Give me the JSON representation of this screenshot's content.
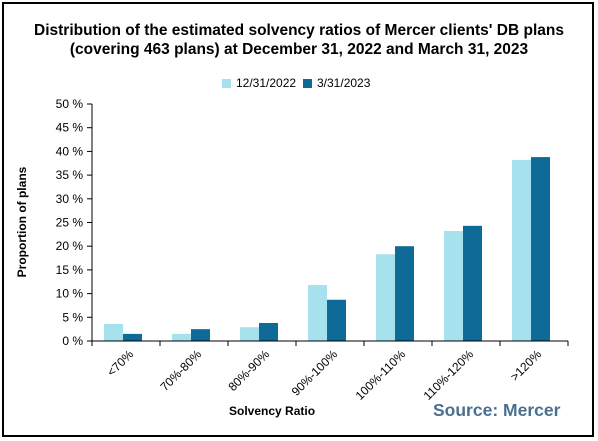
{
  "chart_data": {
    "type": "bar",
    "title": "Distribution  of the estimated  solvency ratios of Mercer clients' DB plans",
    "subtitle": "(covering 463 plans) at December 31, 2022 and March 31, 2023",
    "xlabel": "Solvency Ratio",
    "ylabel": "Proportion of plans",
    "ylim": [
      0,
      50
    ],
    "yticks": [
      0,
      5,
      10,
      15,
      20,
      25,
      30,
      35,
      40,
      45,
      50
    ],
    "ytick_labels": [
      "0 %",
      "5 %",
      "10 %",
      "15 %",
      "20 %",
      "25 %",
      "30 %",
      "35 %",
      "40 %",
      "45 %",
      "50 %"
    ],
    "categories": [
      "<70%",
      "70%-80%",
      "80%-90%",
      "90%-100%",
      "100%-110%",
      "110%-120%",
      ">120%"
    ],
    "series": [
      {
        "name": "12/31/2022",
        "color": "#a6e1ee",
        "values": [
          3.6,
          1.5,
          2.9,
          11.8,
          18.3,
          23.2,
          38.2
        ]
      },
      {
        "name": "3/31/2023",
        "color": "#0e6a96",
        "values": [
          1.5,
          2.5,
          3.8,
          8.7,
          20.0,
          24.3,
          38.8
        ]
      }
    ],
    "grid": false,
    "legend": "top-center"
  },
  "source": "Source: Mercer"
}
